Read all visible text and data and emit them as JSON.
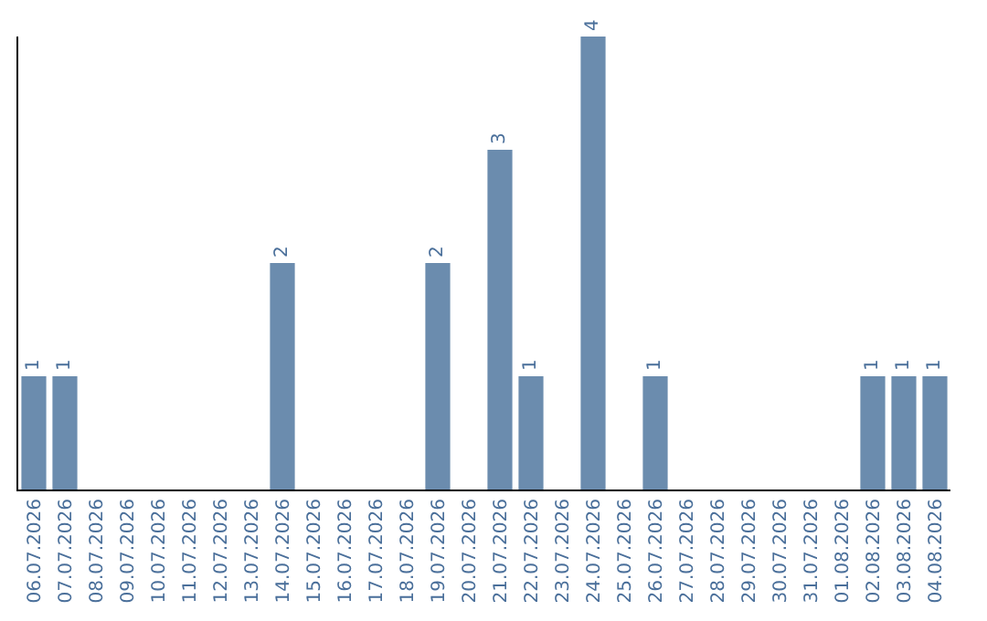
{
  "chart_data": {
    "type": "bar",
    "categories": [
      "06.07.2026",
      "07.07.2026",
      "08.07.2026",
      "09.07.2026",
      "10.07.2026",
      "11.07.2026",
      "12.07.2026",
      "13.07.2026",
      "14.07.2026",
      "15.07.2026",
      "16.07.2026",
      "17.07.2026",
      "18.07.2026",
      "19.07.2026",
      "20.07.2026",
      "21.07.2026",
      "22.07.2026",
      "23.07.2026",
      "24.07.2026",
      "25.07.2026",
      "26.07.2026",
      "27.07.2026",
      "28.07.2026",
      "29.07.2026",
      "30.07.2026",
      "31.07.2026",
      "01.08.2026",
      "02.08.2026",
      "03.08.2026",
      "04.08.2026"
    ],
    "values": [
      1,
      1,
      0,
      0,
      0,
      0,
      0,
      0,
      2,
      0,
      0,
      0,
      0,
      2,
      0,
      3,
      1,
      0,
      4,
      0,
      1,
      0,
      0,
      0,
      0,
      0,
      0,
      1,
      1,
      1
    ],
    "value_labels": [
      "1",
      "1",
      null,
      null,
      null,
      null,
      null,
      null,
      "2",
      null,
      null,
      null,
      null,
      "2",
      null,
      "3",
      "1",
      null,
      "4",
      null,
      "1",
      null,
      null,
      null,
      null,
      null,
      null,
      "1",
      "1",
      "1"
    ],
    "color": "#6b8cae",
    "ylim": [
      0,
      4
    ],
    "tick_labels": "x"
  }
}
